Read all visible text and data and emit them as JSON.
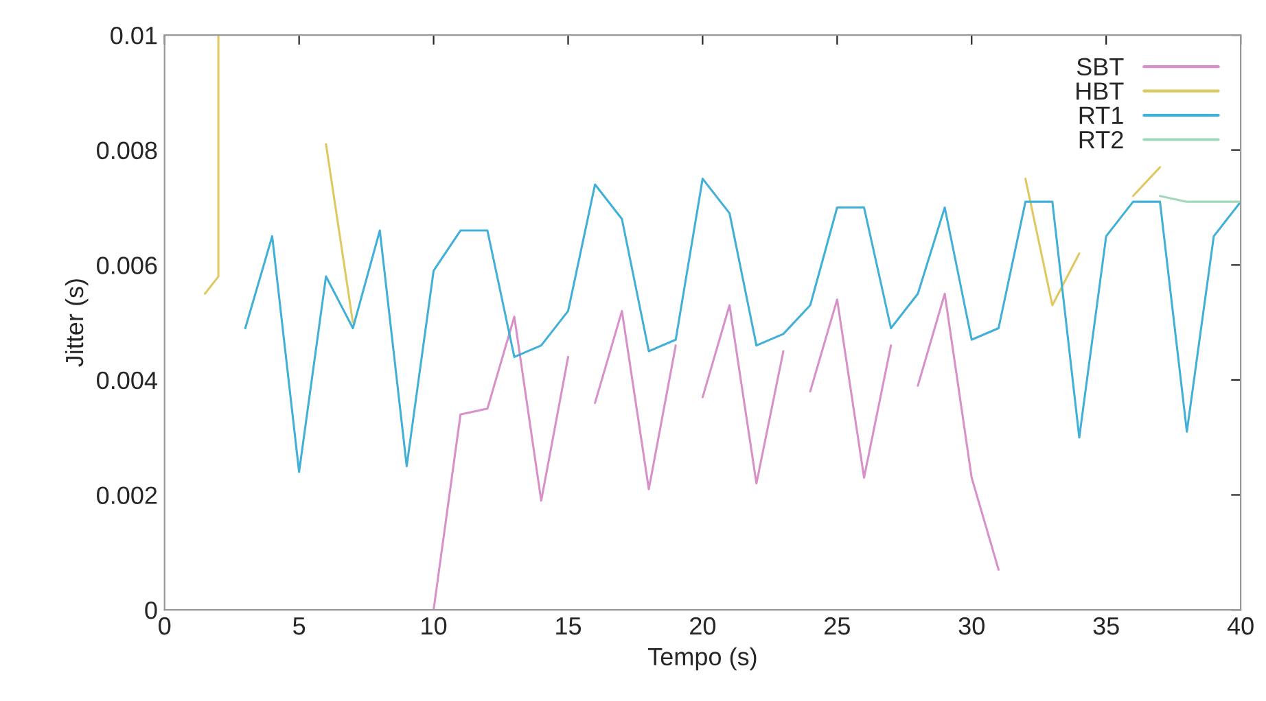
{
  "chart_data": {
    "type": "line",
    "xlabel": "Tempo (s)",
    "ylabel": "Jitter (s)",
    "xlim": [
      0,
      40
    ],
    "ylim": [
      0,
      0.01
    ],
    "xticks": [
      0,
      5,
      10,
      15,
      20,
      25,
      30,
      35,
      40
    ],
    "yticks": [
      0,
      0.002,
      0.004,
      0.006,
      0.008,
      0.01
    ],
    "grid": false,
    "legend": "top right",
    "line_style": "solid",
    "marker": "none",
    "series": [
      {
        "name": "SBT",
        "color": "#d890c8",
        "x": [
          10,
          11,
          12,
          13,
          14,
          15,
          15.5,
          16,
          17,
          18,
          19,
          19.5,
          20,
          21,
          22,
          23,
          23.5,
          24,
          25,
          26,
          27,
          27.5,
          28,
          29,
          30,
          31
        ],
        "values": [
          0.0,
          0.0034,
          0.0035,
          0.0051,
          0.0019,
          0.0044,
          null,
          0.0036,
          0.0052,
          0.0021,
          0.0046,
          null,
          0.0037,
          0.0053,
          0.0022,
          0.0045,
          null,
          0.0038,
          0.0054,
          0.0023,
          0.0046,
          null,
          0.0039,
          0.0055,
          0.0023,
          0.0007
        ]
      },
      {
        "name": "HBT",
        "color": "#e0c860",
        "x": [
          1.5,
          2,
          2,
          4,
          6,
          7,
          20,
          32,
          33,
          34,
          35,
          36,
          37
        ],
        "values": [
          0.0055,
          0.0058,
          0.01,
          null,
          0.0081,
          0.005,
          null,
          0.0075,
          0.0053,
          0.0062,
          null,
          0.0072,
          0.0077
        ]
      },
      {
        "name": "RT1",
        "color": "#40b0d8",
        "x": [
          3,
          4,
          5,
          6,
          7,
          8,
          9,
          10,
          11,
          12,
          13,
          14,
          15,
          16,
          17,
          18,
          19,
          20,
          21,
          22,
          23,
          24,
          25,
          26,
          27,
          28,
          29,
          30,
          31,
          32,
          33,
          34,
          35,
          36,
          37,
          38,
          39,
          40
        ],
        "values": [
          0.0049,
          0.0065,
          0.0024,
          0.0058,
          0.0049,
          0.0066,
          0.0025,
          0.0059,
          0.0066,
          0.0066,
          0.0044,
          0.0046,
          0.0052,
          0.0074,
          0.0068,
          0.0045,
          0.0047,
          0.0075,
          0.0069,
          0.0046,
          0.0048,
          0.0053,
          0.007,
          0.007,
          0.0049,
          0.0055,
          0.007,
          0.0047,
          0.0049,
          0.0071,
          0.0071,
          0.003,
          0.0065,
          0.0071,
          0.0071,
          0.0031,
          0.0065,
          0.0071
        ]
      },
      {
        "name": "RT2",
        "color": "#a0d8b8",
        "x": [
          37,
          38,
          40
        ],
        "values": [
          0.0072,
          0.0071,
          0.0071
        ]
      }
    ]
  }
}
